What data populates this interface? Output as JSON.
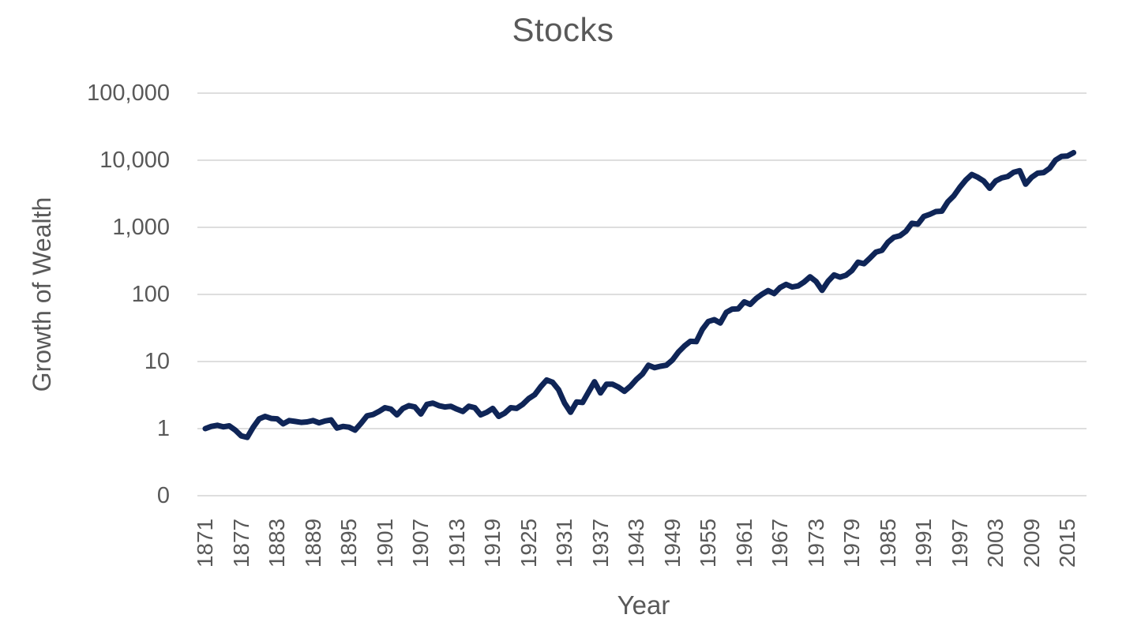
{
  "title": "Stocks",
  "colors": {
    "line": "#0f2557",
    "grid": "#d9d9d9",
    "text": "#595959",
    "background": "#ffffff"
  },
  "chart_data": {
    "type": "line",
    "title": "Stocks",
    "xlabel": "Year",
    "ylabel": "Growth of Wealth",
    "y_scale": "log",
    "grid": true,
    "legend": "none",
    "ylim": [
      0.1,
      100000
    ],
    "y_ticks": [
      {
        "label": "100,000",
        "value": 100000
      },
      {
        "label": "10,000",
        "value": 10000
      },
      {
        "label": "1,000",
        "value": 1000
      },
      {
        "label": "100",
        "value": 100
      },
      {
        "label": "10",
        "value": 10
      },
      {
        "label": "1",
        "value": 1
      },
      {
        "label": "0",
        "value": 0.1
      }
    ],
    "x_ticks": [
      1871,
      1877,
      1883,
      1889,
      1895,
      1901,
      1907,
      1913,
      1919,
      1925,
      1931,
      1937,
      1943,
      1949,
      1955,
      1961,
      1967,
      1973,
      1979,
      1985,
      1991,
      1997,
      2003,
      2009,
      2015
    ],
    "series": [
      {
        "name": "Stocks",
        "start_year": 1871,
        "end_year": 2016,
        "values": [
          1.0,
          1.08,
          1.12,
          1.06,
          1.1,
          0.95,
          0.78,
          0.74,
          1.05,
          1.4,
          1.52,
          1.42,
          1.4,
          1.18,
          1.32,
          1.28,
          1.24,
          1.26,
          1.32,
          1.22,
          1.3,
          1.35,
          1.02,
          1.08,
          1.05,
          0.95,
          1.2,
          1.55,
          1.62,
          1.8,
          2.05,
          1.95,
          1.6,
          2.0,
          2.2,
          2.1,
          1.65,
          2.3,
          2.4,
          2.2,
          2.1,
          2.15,
          1.95,
          1.8,
          2.15,
          2.05,
          1.6,
          1.75,
          2.0,
          1.52,
          1.7,
          2.05,
          2.0,
          2.3,
          2.8,
          3.2,
          4.2,
          5.3,
          4.9,
          3.8,
          2.4,
          1.75,
          2.5,
          2.45,
          3.5,
          5.0,
          3.4,
          4.6,
          4.6,
          4.15,
          3.6,
          4.3,
          5.4,
          6.5,
          8.8,
          8.1,
          8.5,
          8.8,
          10.5,
          13.8,
          17.0,
          20.0,
          19.8,
          30.0,
          39.5,
          42.0,
          37.5,
          54.0,
          60.5,
          61.0,
          77.5,
          71.0,
          87.0,
          101,
          114,
          103,
          127,
          141,
          129,
          134,
          153,
          183,
          156,
          115,
          157,
          195,
          181,
          193,
          228,
          302,
          287,
          349,
          427,
          454,
          600,
          711,
          748,
          874,
          1149,
          1113,
          1453,
          1563,
          1721,
          1743,
          2399,
          2951,
          3936,
          5062,
          6125,
          5568,
          4905,
          3821,
          4918,
          5454,
          5721,
          6625,
          6990,
          4403,
          5570,
          6411,
          6546,
          7593,
          10053,
          11430,
          11590,
          12981
        ]
      }
    ]
  }
}
